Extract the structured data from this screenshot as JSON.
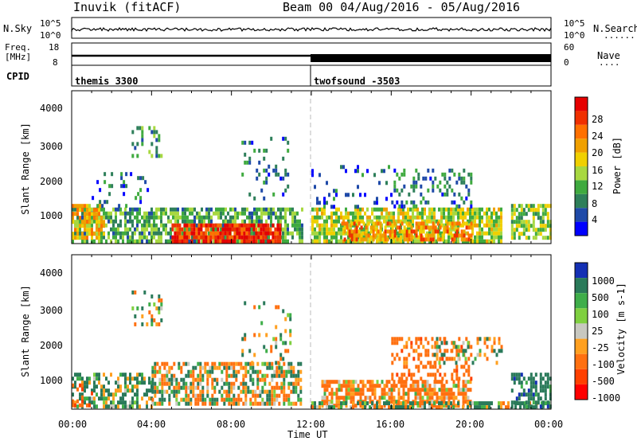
{
  "header": {
    "station": "Inuvik (fitACF)",
    "beam_date": "Beam 00  04/Aug/2016 - 05/Aug/2016"
  },
  "nsky_panel": {
    "left_label": "N.Sky",
    "right_label": "N.Search",
    "right_legend_marks": "········",
    "left_ticks": [
      "10^5",
      "10^0"
    ],
    "right_ticks": [
      "10^5",
      "10^0"
    ]
  },
  "freq_panel": {
    "left_label_line1": "Freq.",
    "left_label_line2": "[MHz]",
    "right_label": "Nave",
    "right_legend_marks": "····",
    "left_ticks": [
      "18",
      "8"
    ],
    "right_ticks": [
      "60",
      "0"
    ]
  },
  "cpid_panel": {
    "label": "CPID",
    "segments": [
      "themis 3300",
      "twofsound -3503"
    ]
  },
  "x_axis": {
    "label": "Time UT",
    "ticks": [
      "00:00",
      "04:00",
      "08:00",
      "12:00",
      "16:00",
      "20:00",
      "00:00"
    ]
  },
  "colors": {
    "power_scale": [
      "#0000ff",
      "#1f4aa8",
      "#2e7f5a",
      "#3faa3f",
      "#a8d840",
      "#f0d000",
      "#f0a000",
      "#ff7000",
      "#f03000",
      "#e60000"
    ],
    "velocity_scale": [
      "#1430b4",
      "#2a7a5a",
      "#3fae4a",
      "#7fd040",
      "#c8c8c0",
      "#ffa020",
      "#ff7010",
      "#ff4000",
      "#ff0000"
    ]
  },
  "chart_data": [
    {
      "type": "heatmap",
      "title": "Power",
      "ylabel": "Slant Range [km]",
      "xlabel": "",
      "y_ticks": [
        "1000",
        "2000",
        "3000",
        "4000"
      ],
      "ylim": [
        180,
        4500
      ],
      "xlim_hours": [
        0,
        24
      ],
      "colorbar_label": "Power [dB]",
      "colorbar_ticks": [
        "4",
        "8",
        "12",
        "16",
        "20",
        "24",
        "28"
      ],
      "colorbar_range": [
        0,
        30
      ],
      "regions": [
        {
          "t0": 0.0,
          "t1": 11.5,
          "r0": 200,
          "r1": 1200,
          "level": 10,
          "density": 0.7
        },
        {
          "t0": 5.0,
          "t1": 10.5,
          "r0": 250,
          "r1": 750,
          "level": 27,
          "density": 0.85
        },
        {
          "t0": 0.0,
          "t1": 1.6,
          "r0": 300,
          "r1": 1300,
          "level": 18,
          "density": 0.65
        },
        {
          "t0": 1.0,
          "t1": 4.0,
          "r0": 1200,
          "r1": 2200,
          "level": 6,
          "density": 0.12
        },
        {
          "t0": 3.0,
          "t1": 4.5,
          "r0": 2600,
          "r1": 3500,
          "level": 8,
          "density": 0.3
        },
        {
          "t0": 8.5,
          "t1": 11.0,
          "r0": 1500,
          "r1": 3200,
          "level": 6,
          "density": 0.15
        },
        {
          "t0": 12.0,
          "t1": 21.5,
          "r0": 200,
          "r1": 1200,
          "level": 14,
          "density": 0.75
        },
        {
          "t0": 13.5,
          "t1": 20.0,
          "r0": 300,
          "r1": 800,
          "level": 21,
          "density": 0.6
        },
        {
          "t0": 16.0,
          "t1": 20.0,
          "r0": 1200,
          "r1": 2300,
          "level": 7,
          "density": 0.28
        },
        {
          "t0": 12.0,
          "t1": 16.0,
          "r0": 1200,
          "r1": 2400,
          "level": 5,
          "density": 0.12
        },
        {
          "t0": 22.0,
          "t1": 24.0,
          "r0": 300,
          "r1": 1300,
          "level": 13,
          "density": 0.6
        }
      ]
    },
    {
      "type": "heatmap",
      "title": "Velocity",
      "ylabel": "Slant Range [km]",
      "xlabel": "Time UT",
      "y_ticks": [
        "1000",
        "2000",
        "3000",
        "4000"
      ],
      "ylim": [
        180,
        4500
      ],
      "xlim_hours": [
        0,
        24
      ],
      "colorbar_label": "Velocity [m s-1]",
      "colorbar_ticks": [
        "1000",
        "500",
        "100",
        "25",
        "-25",
        "-100",
        "-500",
        "-1000"
      ],
      "colorbar_range": [
        -1000,
        1000
      ],
      "regions": [
        {
          "t0": 0.0,
          "t1": 4.0,
          "r0": 200,
          "r1": 1200,
          "level": 150,
          "density": 0.55
        },
        {
          "t0": 4.0,
          "t1": 11.5,
          "r0": 300,
          "r1": 1500,
          "level": 0,
          "density": 0.6
        },
        {
          "t0": 0.0,
          "t1": 1.0,
          "r0": 300,
          "r1": 900,
          "level": -400,
          "density": 0.4
        },
        {
          "t0": 3.0,
          "t1": 4.5,
          "r0": 2600,
          "r1": 3500,
          "level": 0,
          "density": 0.3
        },
        {
          "t0": 8.5,
          "t1": 11.0,
          "r0": 1500,
          "r1": 3200,
          "level": 0,
          "density": 0.15
        },
        {
          "t0": 12.5,
          "t1": 20.0,
          "r0": 300,
          "r1": 1000,
          "level": -200,
          "density": 0.7
        },
        {
          "t0": 16.0,
          "t1": 20.0,
          "r0": 1000,
          "r1": 2200,
          "level": -300,
          "density": 0.35
        },
        {
          "t0": 18.0,
          "t1": 21.5,
          "r0": 1500,
          "r1": 2200,
          "level": 0,
          "density": 0.3
        },
        {
          "t0": 12.0,
          "t1": 24.0,
          "r0": 200,
          "r1": 400,
          "level": 60,
          "density": 0.6
        },
        {
          "t0": 22.0,
          "t1": 24.0,
          "r0": 300,
          "r1": 1200,
          "level": 300,
          "density": 0.5
        }
      ]
    }
  ]
}
